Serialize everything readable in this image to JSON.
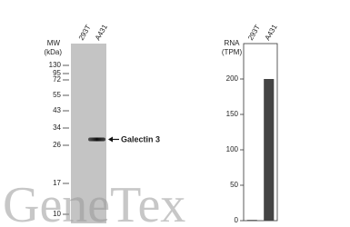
{
  "blot": {
    "mw_label": [
      "MW",
      "(kDa)"
    ],
    "lanes": [
      "293T",
      "A431"
    ],
    "markers": [
      130,
      95,
      72,
      55,
      43,
      34,
      26,
      17,
      10
    ],
    "band_label": "Galectin 3"
  },
  "chart_data": {
    "type": "bar",
    "y_label": [
      "RNA",
      "(TPM)"
    ],
    "categories": [
      "293T",
      "A431"
    ],
    "values": [
      1,
      200
    ],
    "color": "#444444",
    "ylim": [
      0,
      250
    ],
    "yticks": [
      0,
      50,
      100,
      150,
      200
    ]
  },
  "watermark": "GeneTex"
}
